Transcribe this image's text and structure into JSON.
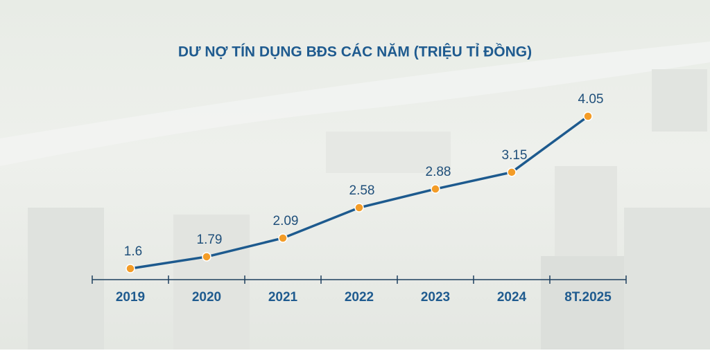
{
  "chart_data": {
    "type": "line",
    "title": "DƯ NỢ TÍN DỤNG BĐS CÁC NĂM (TRIỆU TỈ ĐỒNG)",
    "categories": [
      "2019",
      "2020",
      "2021",
      "2022",
      "2023",
      "2024",
      "8T.2025"
    ],
    "values": [
      1.6,
      1.79,
      2.09,
      2.58,
      2.88,
      3.15,
      4.05
    ],
    "color": "#1d5a8e",
    "marker_color": "#f39c27",
    "data_labels": true
  }
}
